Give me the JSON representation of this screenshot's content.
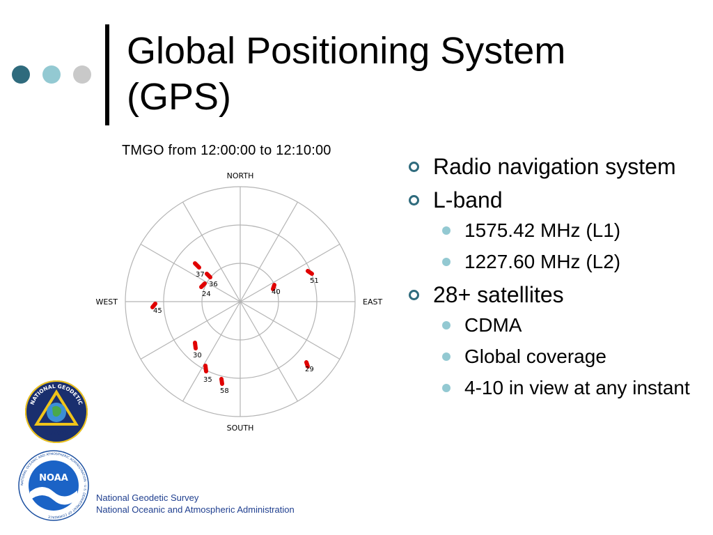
{
  "colors": {
    "dot_dark": "#2f6b7d",
    "dot_mid": "#93c9d2",
    "dot_light": "#c9c9c9",
    "title_bar": "#000000",
    "bullet_marker": "#2f6b7d",
    "sub_bullet_marker": "#93c9d2",
    "footer_text": "#1f3f8f",
    "satellite_track": "#e00000"
  },
  "slide": {
    "title_line1": "Global Positioning System",
    "title_line2": "(GPS)"
  },
  "skyplot": {
    "title": "TMGO from 12:00:00 to 12:10:00",
    "directions": {
      "north": "NORTH",
      "south": "SOUTH",
      "east": "EAST",
      "west": "WEST"
    }
  },
  "bullets": [
    {
      "text": "Radio navigation system",
      "sub": []
    },
    {
      "text": "L-band",
      "sub": [
        "1575.42 MHz (L1)",
        "1227.60 MHz (L2)"
      ]
    },
    {
      "text": "28+ satellites",
      "sub": [
        "CDMA",
        "Global coverage",
        "4-10 in view at any instant"
      ]
    }
  ],
  "logos": {
    "ngs": {
      "icon": "ngs-seal-icon",
      "text_top": "NATIONAL GEODETIC",
      "text_bottom": "SURVEY"
    },
    "noaa": {
      "icon": "noaa-logo-icon",
      "text_center": "NOAA",
      "text_ring": "NATIONAL OCEANIC AND ATMOSPHERIC ADMINISTRATION · U.S. DEPARTMENT OF COMMERCE"
    }
  },
  "footer": {
    "line1": "National Geodetic Survey",
    "line2": "National Oceanic and Atmospheric Administration"
  }
}
